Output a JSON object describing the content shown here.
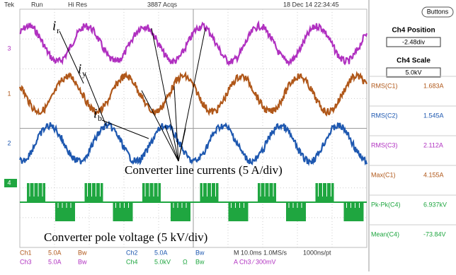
{
  "header": {
    "brand": "Tek",
    "mode": "Run",
    "acquisition": "Hi Res",
    "acqs": "3887 Acqs",
    "datetime": "18 Dec 14 22:34:45"
  },
  "side_panel": {
    "button": "Buttons",
    "position_title": "Ch4 Position",
    "position_value": "-2.48div",
    "scale_title": "Ch4 Scale",
    "scale_value": "5.0kV",
    "measurements": [
      {
        "label": "RMS(C1)",
        "value": "1.683A"
      },
      {
        "label": "RMS(C2)",
        "value": "1.545A"
      },
      {
        "label": "RMS(C3)",
        "value": "2.112A"
      },
      {
        "label": "Max(C1)",
        "value": "4.155A"
      },
      {
        "label": "Pk-Pk(C4)",
        "value": "6.937kV"
      },
      {
        "label": "Mean(C4)",
        "value": "-73.84V"
      }
    ]
  },
  "channel_markers": [
    "3",
    "1",
    "2",
    "4"
  ],
  "annotations": {
    "currents": [
      {
        "symbol": "i",
        "subscript": "r"
      },
      {
        "symbol": "i",
        "subscript": "y"
      },
      {
        "symbol": "i",
        "subscript": "b"
      }
    ],
    "line_currents_label": "Converter line currents (5 A/div)",
    "pole_voltage_label": "Converter pole voltage (5 kV/div)"
  },
  "footer": {
    "row1": [
      "Ch1",
      "5.0A",
      "Bw",
      "Ch2",
      "5.0A",
      "Bw",
      "M 10.0ms 1.0MS/s",
      "1000ns/pt"
    ],
    "row2": [
      "Ch3",
      "5.0A",
      "Bw",
      "Ch4",
      "5.0kV",
      "Ω",
      "Bw",
      "A Ch3 ⁄ 300mV"
    ]
  }
}
